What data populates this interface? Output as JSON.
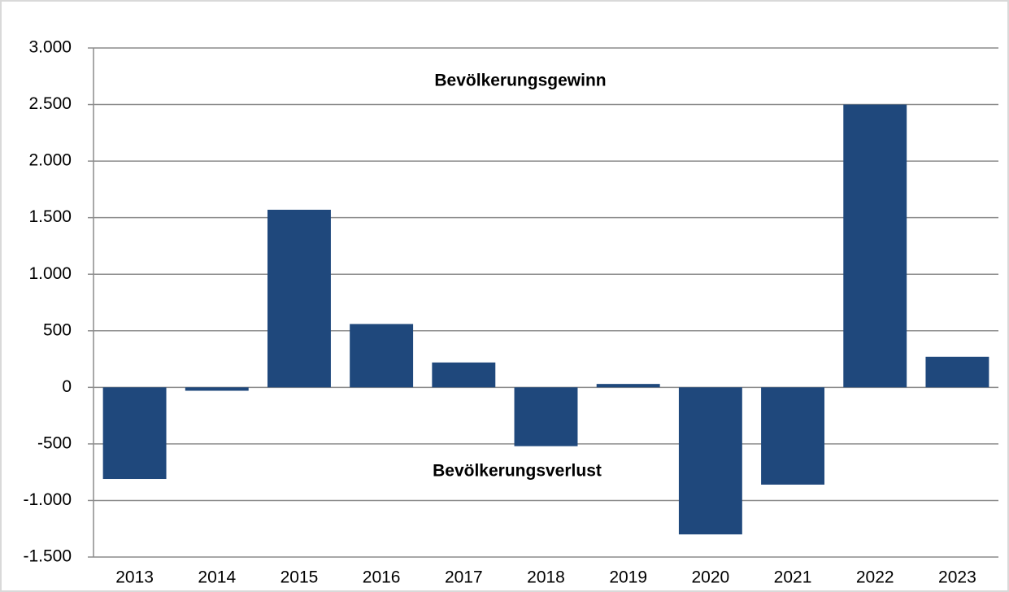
{
  "chart_data": {
    "type": "bar",
    "categories": [
      "2013",
      "2014",
      "2015",
      "2016",
      "2017",
      "2018",
      "2019",
      "2020",
      "2021",
      "2022",
      "2023"
    ],
    "values": [
      -810,
      -30,
      1570,
      560,
      220,
      -520,
      30,
      -1300,
      -860,
      2500,
      270
    ],
    "color": "#1f487c",
    "annotations": [
      "Bevölkerungsgewinn",
      "Bevölkerungsverlust"
    ],
    "ylim": [
      -1500,
      3000
    ],
    "yticks": [
      {
        "value": -1500,
        "label": "-1.500"
      },
      {
        "value": -1000,
        "label": "-1.000"
      },
      -500,
      0,
      500,
      {
        "value": 1000,
        "label": "1.000"
      },
      {
        "value": 1500,
        "label": "1.500"
      },
      {
        "value": 2000,
        "label": "2.000"
      },
      {
        "value": 2500,
        "label": "2.500"
      },
      {
        "value": 3000,
        "label": "3.000"
      }
    ],
    "grid": true
  }
}
